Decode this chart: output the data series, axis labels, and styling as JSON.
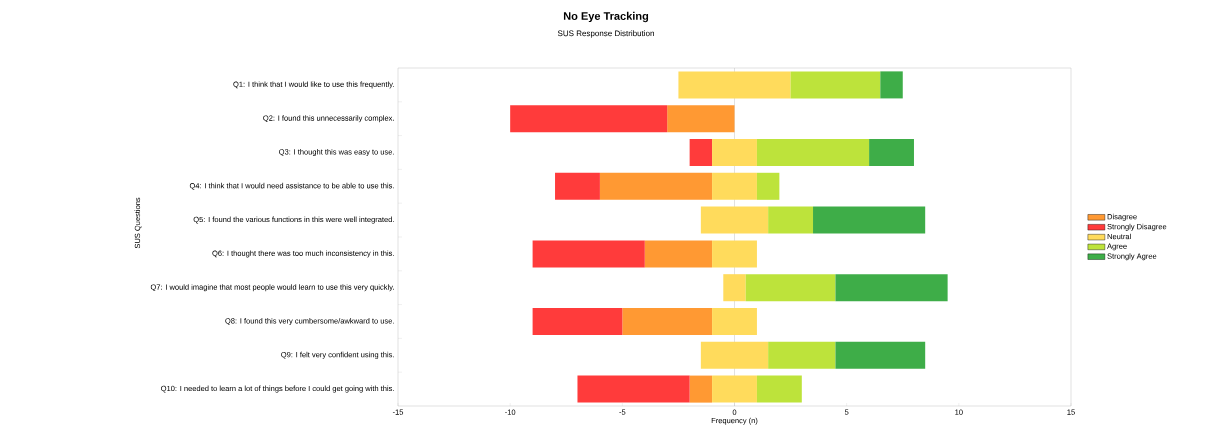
{
  "chart_data": {
    "type": "bar",
    "orientation": "horizontal",
    "title": "No Eye Tracking",
    "subtitle": "SUS Response Distribution",
    "xlabel": "Frequency (n)",
    "ylabel": "SUS Questions",
    "categories": [
      "Q1: I think that I would like to use this frequently.",
      "Q2: I found this unnecessarily complex.",
      "Q3: I thought this was easy to use.",
      "Q4: I think that I would need assistance to be able to use this.",
      "Q5: I found the various functions in this were well integrated.",
      "Q6: I thought there was too much inconsistency in this.",
      "Q7: I would imagine that most people would learn to use this very quickly.",
      "Q8: I found this very cumbersome/awkward to use.",
      "Q9: I felt very confident using this.",
      "Q10: I needed to learn a lot of things before I could get going with this."
    ],
    "series": [
      {
        "name": "Disagree",
        "color": "#ff9933",
        "base": [
          null,
          -3,
          null,
          -6,
          null,
          -4,
          null,
          -5,
          null,
          -2
        ],
        "values": [
          null,
          3,
          null,
          5,
          null,
          3,
          null,
          4,
          null,
          1
        ]
      },
      {
        "name": "Strongly Disagree",
        "color": "#ff3b3b",
        "base": [
          null,
          -10,
          -2,
          -8,
          null,
          -9,
          null,
          -9,
          null,
          -7
        ],
        "values": [
          null,
          7,
          1,
          2,
          null,
          5,
          null,
          4,
          null,
          5
        ]
      },
      {
        "name": "Neutral",
        "color": "#ffdb5c",
        "base": [
          -2.5,
          null,
          -1,
          -1,
          -1.5,
          -1,
          -0.5,
          -1,
          -1.5,
          -1
        ],
        "values": [
          5,
          null,
          2,
          2,
          3,
          2,
          1,
          2,
          3,
          2
        ]
      },
      {
        "name": "Agree",
        "color": "#bde33b",
        "base": [
          2.5,
          null,
          1,
          1,
          1.5,
          null,
          0.5,
          null,
          1.5,
          1
        ],
        "values": [
          4,
          null,
          5,
          1,
          2,
          null,
          4,
          null,
          3,
          2
        ]
      },
      {
        "name": "Strongly Agree",
        "color": "#3ead48",
        "base": [
          6.5,
          null,
          6,
          null,
          3.5,
          null,
          4.5,
          null,
          4.5,
          null
        ],
        "values": [
          1,
          null,
          2,
          null,
          5,
          null,
          5,
          null,
          4,
          null
        ]
      }
    ],
    "xlim": [
      -15,
      15
    ],
    "xticks": [
      -15,
      -10,
      -5,
      0,
      5,
      10,
      15
    ],
    "legend": "right"
  }
}
